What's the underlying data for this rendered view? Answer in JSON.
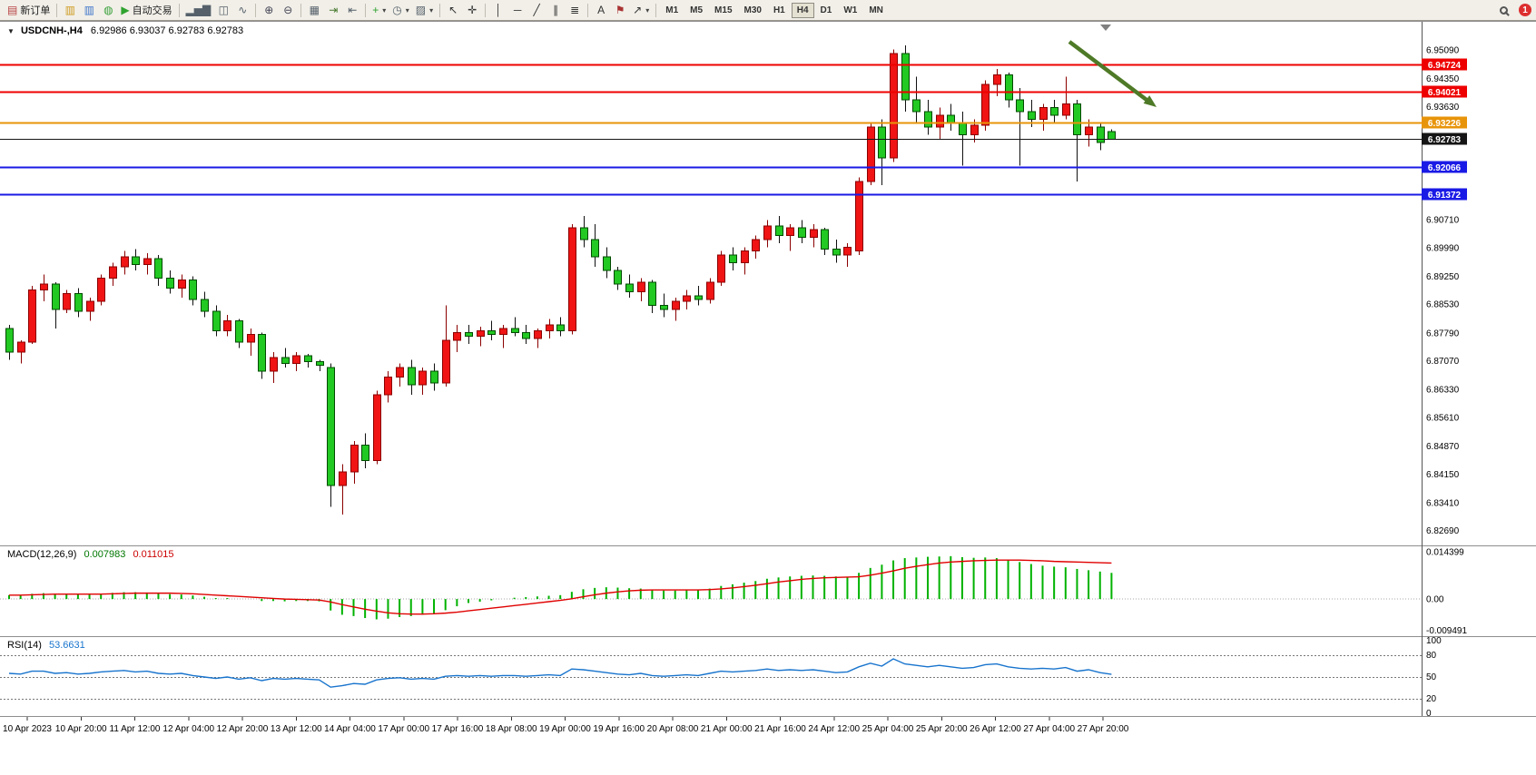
{
  "toolbar": {
    "active_timeframe": "H4",
    "notification_count": "1",
    "items": [
      {
        "type": "button",
        "name": "new-order-button",
        "glyph": "▤",
        "glyph_color": "#b84040",
        "label": "新订单"
      },
      {
        "type": "sep"
      },
      {
        "type": "button",
        "name": "market-watch-icon",
        "glyph": "▥",
        "glyph_color": "#cf9a1e"
      },
      {
        "type": "button",
        "name": "navigator-icon",
        "glyph": "▥",
        "glyph_color": "#3f74c9"
      },
      {
        "type": "button",
        "name": "terminal-icon",
        "glyph": "◍",
        "glyph_color": "#3aa03a"
      },
      {
        "type": "button",
        "name": "autotrade-button",
        "glyph": "▶",
        "glyph_color": "#2fa32f",
        "label": "自动交易"
      },
      {
        "type": "sep"
      },
      {
        "type": "button",
        "name": "bar-chart-icon",
        "glyph": "▂▅▇",
        "glyph_color": "#55606a"
      },
      {
        "type": "button",
        "name": "candlestick-chart-icon",
        "glyph": "◫",
        "glyph_color": "#55606a"
      },
      {
        "type": "button",
        "name": "line-chart-icon",
        "glyph": "∿",
        "glyph_color": "#55606a"
      },
      {
        "type": "sep"
      },
      {
        "type": "button",
        "name": "zoom-in-icon",
        "glyph": "⊕",
        "glyph_color": "#445",
        "caret": false
      },
      {
        "type": "button",
        "name": "zoom-out-icon",
        "glyph": "⊖",
        "glyph_color": "#445"
      },
      {
        "type": "sep"
      },
      {
        "type": "button",
        "name": "tile-windows-icon",
        "glyph": "▦",
        "glyph_color": "#55606a"
      },
      {
        "type": "button",
        "name": "auto-scroll-icon",
        "glyph": "⇥",
        "glyph_color": "#47792e"
      },
      {
        "type": "button",
        "name": "chart-shift-icon",
        "glyph": "⇤",
        "glyph_color": "#55606a"
      },
      {
        "type": "sep"
      },
      {
        "type": "button",
        "name": "indicators-button",
        "glyph": "+",
        "glyph_color": "#2fa32f",
        "caret": true
      },
      {
        "type": "button",
        "name": "periods-button",
        "glyph": "◷",
        "glyph_color": "#55606a",
        "caret": true
      },
      {
        "type": "button",
        "name": "templates-button",
        "glyph": "▨",
        "glyph_color": "#55606a",
        "caret": true
      },
      {
        "type": "sep"
      },
      {
        "type": "button",
        "name": "cursor-icon",
        "glyph": "↖",
        "glyph_color": "#333"
      },
      {
        "type": "button",
        "name": "crosshair-icon",
        "glyph": "✛",
        "glyph_color": "#333"
      },
      {
        "type": "sep"
      },
      {
        "type": "button",
        "name": "vertical-line-icon",
        "glyph": "│",
        "glyph_color": "#333"
      },
      {
        "type": "button",
        "name": "horizontal-line-icon",
        "glyph": "─",
        "glyph_color": "#333"
      },
      {
        "type": "button",
        "name": "trendline-icon",
        "glyph": "╱",
        "glyph_color": "#333"
      },
      {
        "type": "button",
        "name": "channel-icon",
        "glyph": "∥",
        "glyph_color": "#333"
      },
      {
        "type": "button",
        "name": "fibonacci-icon",
        "glyph": "≣",
        "glyph_color": "#333"
      },
      {
        "type": "sep"
      },
      {
        "type": "button",
        "name": "text-icon",
        "glyph": "A",
        "glyph_color": "#333"
      },
      {
        "type": "button",
        "name": "text-label-icon",
        "glyph": "⚑",
        "glyph_color": "#aa3333"
      },
      {
        "type": "button",
        "name": "arrows-button",
        "glyph": "↗",
        "glyph_color": "#333",
        "caret": true
      },
      {
        "type": "sep"
      },
      {
        "type": "tf",
        "label": "M1"
      },
      {
        "type": "tf",
        "label": "M5"
      },
      {
        "type": "tf",
        "label": "M15"
      },
      {
        "type": "tf",
        "label": "M30"
      },
      {
        "type": "tf",
        "label": "H1"
      },
      {
        "type": "tf",
        "label": "H4"
      },
      {
        "type": "tf",
        "label": "D1"
      },
      {
        "type": "tf",
        "label": "W1"
      },
      {
        "type": "tf",
        "label": "MN"
      },
      {
        "type": "spacer"
      },
      {
        "type": "lens",
        "name": "search-icon"
      },
      {
        "type": "badge",
        "name": "notifications-badge",
        "label": "1"
      }
    ]
  },
  "header": {
    "collapse_glyph": "▼",
    "symbol_period": "USDCNH-,H4",
    "quote": "6.92986 6.93037 6.92783 6.92783"
  },
  "colors": {
    "bull": "#F01414",
    "bear": "#22C922",
    "macd_hist": "#00B200",
    "macd_signal": "#E00000",
    "rsi_line": "#1874CD",
    "arrow": "#4E7A27"
  },
  "chart_data": {
    "type": "candlestick",
    "symbol": "USDCNH-",
    "timeframe": "H4",
    "current_quote": {
      "open": 6.92986,
      "high": 6.93037,
      "low": 6.92783,
      "close": 6.92783
    },
    "price_range": [
      6.8245,
      6.9565
    ],
    "price_axis_labels": [
      "6.95090",
      "6.94350",
      "6.93630",
      "6.90710",
      "6.89990",
      "6.89250",
      "6.88530",
      "6.87790",
      "6.87070",
      "6.86330",
      "6.85610",
      "6.84870",
      "6.84150",
      "6.83410",
      "6.82690"
    ],
    "hlines": [
      {
        "price": 6.94724,
        "color": "#EE0000",
        "label": "6.94724",
        "is_current": false
      },
      {
        "price": 6.94021,
        "color": "#EE0000",
        "label": "6.94021",
        "is_current": false
      },
      {
        "price": 6.93226,
        "color": "#E8940A",
        "label": "6.93226",
        "is_current": false
      },
      {
        "price": 6.92783,
        "color": "#151515",
        "label": "6.92783",
        "is_current": true
      },
      {
        "price": 6.92066,
        "color": "#1A1AE6",
        "label": "6.92066",
        "is_current": false
      },
      {
        "price": 6.91372,
        "color": "#1A1AE6",
        "label": "6.91372",
        "is_current": false
      }
    ],
    "candles": [
      [
        6.879,
        6.88,
        6.871,
        6.873
      ],
      [
        6.873,
        6.876,
        6.87,
        6.8755
      ],
      [
        6.8755,
        6.89,
        6.875,
        6.889
      ],
      [
        6.889,
        6.893,
        6.886,
        6.8905
      ],
      [
        6.8905,
        6.891,
        6.879,
        6.884
      ],
      [
        6.884,
        6.889,
        6.883,
        6.888
      ],
      [
        6.888,
        6.8895,
        6.882,
        6.8835
      ],
      [
        6.8835,
        6.887,
        6.881,
        6.886
      ],
      [
        6.886,
        6.893,
        6.885,
        6.892
      ],
      [
        6.892,
        6.896,
        6.89,
        6.895
      ],
      [
        6.895,
        6.899,
        6.893,
        6.8975
      ],
      [
        6.8975,
        6.8995,
        6.894,
        6.8955
      ],
      [
        6.8955,
        6.8985,
        6.893,
        6.897
      ],
      [
        6.897,
        6.898,
        6.89,
        6.892
      ],
      [
        6.892,
        6.894,
        6.888,
        6.8895
      ],
      [
        6.8895,
        6.893,
        6.887,
        6.8915
      ],
      [
        6.8915,
        6.8925,
        6.885,
        6.8865
      ],
      [
        6.8865,
        6.8885,
        6.882,
        6.8835
      ],
      [
        6.8835,
        6.885,
        6.877,
        6.8785
      ],
      [
        6.8785,
        6.8825,
        6.877,
        6.881
      ],
      [
        6.881,
        6.8815,
        6.874,
        6.8755
      ],
      [
        6.8755,
        6.879,
        6.872,
        6.8775
      ],
      [
        6.8775,
        6.878,
        6.866,
        6.868
      ],
      [
        6.868,
        6.873,
        6.865,
        6.8715
      ],
      [
        6.8715,
        6.874,
        6.869,
        6.87
      ],
      [
        6.87,
        6.873,
        6.868,
        6.872
      ],
      [
        6.872,
        6.8725,
        6.869,
        6.8705
      ],
      [
        6.8705,
        6.871,
        6.868,
        6.8695
      ],
      [
        6.869,
        6.87,
        6.833,
        6.8385
      ],
      [
        6.8385,
        6.844,
        6.831,
        6.842
      ],
      [
        6.842,
        6.85,
        6.839,
        6.849
      ],
      [
        6.849,
        6.852,
        6.843,
        6.845
      ],
      [
        6.845,
        6.863,
        6.844,
        6.862
      ],
      [
        6.862,
        6.868,
        6.86,
        6.8665
      ],
      [
        6.8665,
        6.87,
        6.864,
        6.869
      ],
      [
        6.869,
        6.871,
        6.862,
        6.8645
      ],
      [
        6.8645,
        6.869,
        6.862,
        6.868
      ],
      [
        6.868,
        6.87,
        6.863,
        6.865
      ],
      [
        6.865,
        6.885,
        6.864,
        6.876
      ],
      [
        6.876,
        6.88,
        6.873,
        6.878
      ],
      [
        6.878,
        6.88,
        6.875,
        6.877
      ],
      [
        6.877,
        6.8795,
        6.8745,
        6.8785
      ],
      [
        6.8785,
        6.881,
        6.876,
        6.8775
      ],
      [
        6.8775,
        6.88,
        6.874,
        6.879
      ],
      [
        6.879,
        6.882,
        6.877,
        6.878
      ],
      [
        6.878,
        6.88,
        6.875,
        6.8765
      ],
      [
        6.8765,
        6.879,
        6.874,
        6.8785
      ],
      [
        6.8785,
        6.8815,
        6.8765,
        6.88
      ],
      [
        6.88,
        6.882,
        6.877,
        6.8785
      ],
      [
        6.8785,
        6.906,
        6.8775,
        6.905
      ],
      [
        6.905,
        6.908,
        6.9,
        6.902
      ],
      [
        6.902,
        6.906,
        6.895,
        6.8975
      ],
      [
        6.8975,
        6.9,
        6.892,
        6.894
      ],
      [
        6.894,
        6.895,
        6.889,
        6.8905
      ],
      [
        6.8905,
        6.893,
        6.887,
        6.8885
      ],
      [
        6.8885,
        6.892,
        6.886,
        6.891
      ],
      [
        6.891,
        6.8915,
        6.883,
        6.885
      ],
      [
        6.885,
        6.888,
        6.882,
        6.884
      ],
      [
        6.884,
        6.887,
        6.881,
        6.886
      ],
      [
        6.886,
        6.889,
        6.884,
        6.8875
      ],
      [
        6.8875,
        6.89,
        6.885,
        6.8865
      ],
      [
        6.8865,
        6.892,
        6.8855,
        6.891
      ],
      [
        6.891,
        6.899,
        6.89,
        6.898
      ],
      [
        6.898,
        6.9,
        6.894,
        6.896
      ],
      [
        6.896,
        6.9,
        6.893,
        6.899
      ],
      [
        6.899,
        6.903,
        6.897,
        6.902
      ],
      [
        6.902,
        6.907,
        6.9,
        6.9055
      ],
      [
        6.9055,
        6.908,
        6.901,
        6.903
      ],
      [
        6.903,
        6.906,
        6.899,
        6.905
      ],
      [
        6.905,
        6.907,
        6.901,
        6.9025
      ],
      [
        6.9025,
        6.906,
        6.9,
        6.9045
      ],
      [
        6.9045,
        6.905,
        6.898,
        6.8995
      ],
      [
        6.8995,
        6.902,
        6.896,
        6.898
      ],
      [
        6.898,
        6.901,
        6.895,
        6.9
      ],
      [
        6.899,
        6.918,
        6.898,
        6.917
      ],
      [
        6.917,
        6.932,
        6.916,
        6.931
      ],
      [
        6.931,
        6.933,
        6.916,
        6.923
      ],
      [
        6.923,
        6.951,
        6.922,
        6.95
      ],
      [
        6.95,
        6.952,
        6.935,
        6.938
      ],
      [
        6.938,
        6.944,
        6.932,
        6.935
      ],
      [
        6.935,
        6.938,
        6.929,
        6.931
      ],
      [
        6.931,
        6.936,
        6.928,
        6.934
      ],
      [
        6.934,
        6.937,
        6.93,
        6.932
      ],
      [
        6.932,
        6.935,
        6.921,
        6.929
      ],
      [
        6.929,
        6.933,
        6.927,
        6.9315
      ],
      [
        6.9315,
        6.943,
        6.93,
        6.942
      ],
      [
        6.942,
        6.946,
        6.939,
        6.9445
      ],
      [
        6.9445,
        6.945,
        6.936,
        6.938
      ],
      [
        6.938,
        6.941,
        6.921,
        6.935
      ],
      [
        6.935,
        6.938,
        6.931,
        6.933
      ],
      [
        6.933,
        6.937,
        6.93,
        6.936
      ],
      [
        6.936,
        6.938,
        6.932,
        6.934
      ],
      [
        6.934,
        6.944,
        6.933,
        6.937
      ],
      [
        6.937,
        6.938,
        6.917,
        6.929
      ],
      [
        6.929,
        6.933,
        6.926,
        6.931
      ],
      [
        6.931,
        6.932,
        6.925,
        6.927
      ],
      [
        6.92986,
        6.93037,
        6.92783,
        6.92783
      ]
    ],
    "time_labels": [
      "10 Apr 2023",
      "10 Apr 20:00",
      "11 Apr 12:00",
      "12 Apr 04:00",
      "12 Apr 20:00",
      "13 Apr 12:00",
      "14 Apr 04:00",
      "17 Apr 00:00",
      "17 Apr 16:00",
      "18 Apr 08:00",
      "19 Apr 00:00",
      "19 Apr 16:00",
      "20 Apr 08:00",
      "21 Apr 00:00",
      "21 Apr 16:00",
      "24 Apr 12:00",
      "25 Apr 04:00",
      "25 Apr 20:00",
      "26 Apr 12:00",
      "27 Apr 04:00",
      "27 Apr 20:00"
    ],
    "macd": {
      "title": "MACD(12,26,9)",
      "main_value": "0.007983",
      "signal_value": "0.011015",
      "range": [
        -0.0105,
        0.015
      ],
      "axis_labels": [
        "0.014399",
        "0.00",
        "-0.009491"
      ],
      "hist": [
        0.0012,
        0.0013,
        0.0016,
        0.0018,
        0.0016,
        0.0016,
        0.0014,
        0.0014,
        0.0016,
        0.0019,
        0.0021,
        0.0021,
        0.002,
        0.0018,
        0.0015,
        0.0014,
        0.0011,
        0.0007,
        0.0003,
        0.0003,
        0.0,
        0.0,
        -0.0006,
        -0.0006,
        -0.0007,
        -0.0006,
        -0.0006,
        -0.0007,
        -0.0035,
        -0.0048,
        -0.0052,
        -0.0058,
        -0.0062,
        -0.006,
        -0.0055,
        -0.0052,
        -0.0048,
        -0.0044,
        -0.0034,
        -0.0022,
        -0.0012,
        -0.0008,
        -0.0004,
        0.0,
        0.0004,
        0.0006,
        0.0008,
        0.001,
        0.0012,
        0.0022,
        0.003,
        0.0034,
        0.0036,
        0.0035,
        0.0033,
        0.0032,
        0.0028,
        0.0026,
        0.0026,
        0.0027,
        0.0028,
        0.0032,
        0.004,
        0.0045,
        0.005,
        0.0055,
        0.0062,
        0.0066,
        0.0069,
        0.0071,
        0.0072,
        0.0071,
        0.0069,
        0.0068,
        0.008,
        0.0095,
        0.0105,
        0.0118,
        0.0125,
        0.0127,
        0.0129,
        0.013,
        0.0131,
        0.0128,
        0.0126,
        0.0127,
        0.0125,
        0.012,
        0.0113,
        0.0107,
        0.0102,
        0.0099,
        0.0097,
        0.0092,
        0.0088,
        0.0084,
        0.008
      ],
      "signal": [
        0.0012,
        0.0012,
        0.0013,
        0.0014,
        0.0015,
        0.0015,
        0.0015,
        0.0015,
        0.0015,
        0.0016,
        0.0017,
        0.0018,
        0.0018,
        0.0018,
        0.0018,
        0.0017,
        0.0016,
        0.0014,
        0.0012,
        0.001,
        0.0008,
        0.0006,
        0.0004,
        0.0002,
        0.0,
        -0.0001,
        -0.0002,
        -0.0003,
        -0.0009,
        -0.0017,
        -0.0024,
        -0.0031,
        -0.0037,
        -0.0042,
        -0.0045,
        -0.0046,
        -0.0046,
        -0.0045,
        -0.0043,
        -0.004,
        -0.0036,
        -0.0032,
        -0.0028,
        -0.0024,
        -0.002,
        -0.0016,
        -0.0012,
        -0.0008,
        -0.0004,
        0.0001,
        0.0007,
        0.0013,
        0.0018,
        0.0022,
        0.0025,
        0.0027,
        0.0028,
        0.0028,
        0.0028,
        0.0028,
        0.0028,
        0.0029,
        0.0031,
        0.0034,
        0.0038,
        0.0042,
        0.0047,
        0.0052,
        0.0056,
        0.006,
        0.0063,
        0.0065,
        0.0066,
        0.0067,
        0.0068,
        0.0073,
        0.0079,
        0.0086,
        0.0094,
        0.01,
        0.0105,
        0.011,
        0.0113,
        0.0115,
        0.0117,
        0.0118,
        0.0119,
        0.0119,
        0.0119,
        0.0118,
        0.0117,
        0.0115,
        0.0114,
        0.0113,
        0.0112,
        0.0111,
        0.011
      ]
    },
    "rsi": {
      "title": "RSI(14)",
      "value": "53.6631",
      "range": [
        0,
        100
      ],
      "levels": [
        80,
        50,
        20
      ],
      "axis_labels": [
        "100",
        "80",
        "50",
        "20",
        "0"
      ],
      "values": [
        55,
        54,
        58,
        58,
        55,
        56,
        54,
        55,
        57,
        58,
        59,
        57,
        58,
        55,
        54,
        55,
        52,
        50,
        48,
        50,
        47,
        49,
        45,
        48,
        47,
        48,
        47,
        46,
        36,
        38,
        41,
        40,
        46,
        48,
        49,
        47,
        48,
        47,
        51,
        52,
        51,
        52,
        51,
        52,
        52,
        51,
        52,
        53,
        52,
        61,
        60,
        58,
        56,
        54,
        53,
        55,
        52,
        51,
        52,
        53,
        52,
        55,
        58,
        57,
        58,
        59,
        61,
        59,
        60,
        59,
        60,
        58,
        56,
        57,
        64,
        69,
        65,
        75,
        68,
        66,
        64,
        66,
        64,
        62,
        63,
        67,
        68,
        64,
        62,
        61,
        62,
        61,
        63,
        58,
        60,
        56,
        53.7
      ]
    },
    "annotations": {
      "trend_arrow": {
        "color": "#4E7A27",
        "direction": "down-right"
      }
    }
  }
}
